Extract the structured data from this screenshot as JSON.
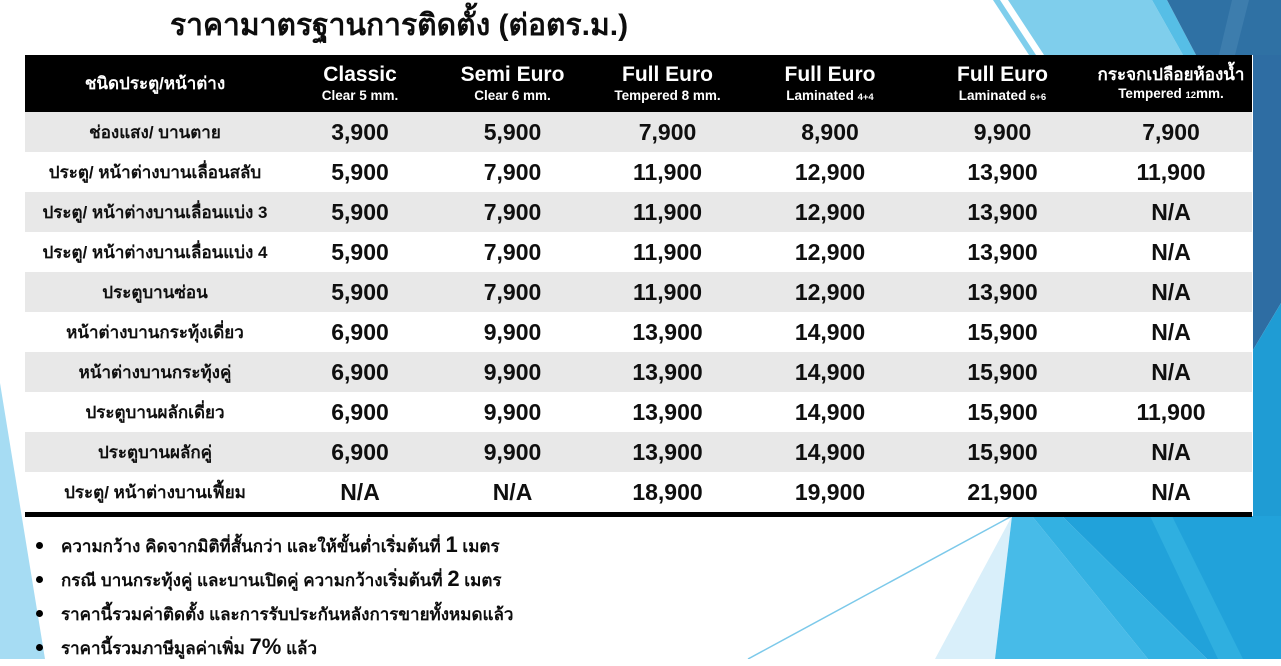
{
  "title": "ราคามาตรฐานการติดตั้ง (ต่อตร.ม.)",
  "table": {
    "columns": [
      {
        "title": "ชนิดประตู/หน้าต่าง",
        "thai": true,
        "sub_parts": []
      },
      {
        "title": "Classic",
        "thai": false,
        "sub_parts": [
          {
            "text": "Clear 5 mm.",
            "small": false
          }
        ]
      },
      {
        "title": "Semi Euro",
        "thai": false,
        "sub_parts": [
          {
            "text": "Clear 6 mm.",
            "small": false
          }
        ]
      },
      {
        "title": "Full Euro",
        "thai": false,
        "sub_parts": [
          {
            "text": "Tempered 8 mm.",
            "small": false
          }
        ]
      },
      {
        "title": "Full Euro",
        "thai": false,
        "sub_parts": [
          {
            "text": "Laminated ",
            "small": false
          },
          {
            "text": "4+4",
            "small": true
          }
        ]
      },
      {
        "title": "Full Euro",
        "thai": false,
        "sub_parts": [
          {
            "text": "Laminated ",
            "small": false
          },
          {
            "text": "6+6",
            "small": true
          }
        ]
      },
      {
        "title": "กระจกเปลือยห้องน้ำ",
        "thai": true,
        "sub_parts": [
          {
            "text": "Tempered ",
            "small": false
          },
          {
            "text": "12",
            "small": true
          },
          {
            "text": "mm.",
            "small": false
          }
        ]
      }
    ],
    "rows": [
      {
        "label": "ช่องแสง/ บานตาย",
        "values": [
          "3,900",
          "5,900",
          "7,900",
          "8,900",
          "9,900",
          "7,900"
        ]
      },
      {
        "label": "ประตู/ หน้าต่างบานเลื่อนสลับ",
        "values": [
          "5,900",
          "7,900",
          "11,900",
          "12,900",
          "13,900",
          "11,900"
        ]
      },
      {
        "label": "ประตู/ หน้าต่างบานเลื่อนแบ่ง 3",
        "values": [
          "5,900",
          "7,900",
          "11,900",
          "12,900",
          "13,900",
          "N/A"
        ]
      },
      {
        "label": "ประตู/ หน้าต่างบานเลื่อนแบ่ง 4",
        "values": [
          "5,900",
          "7,900",
          "11,900",
          "12,900",
          "13,900",
          "N/A"
        ]
      },
      {
        "label": "ประตูบานซ่อน",
        "values": [
          "5,900",
          "7,900",
          "11,900",
          "12,900",
          "13,900",
          "N/A"
        ]
      },
      {
        "label": "หน้าต่างบานกระทุ้งเดี่ยว",
        "values": [
          "6,900",
          "9,900",
          "13,900",
          "14,900",
          "15,900",
          "N/A"
        ]
      },
      {
        "label": "หน้าต่างบานกระทุ้งคู่",
        "values": [
          "6,900",
          "9,900",
          "13,900",
          "14,900",
          "15,900",
          "N/A"
        ]
      },
      {
        "label": "ประตูบานผลักเดี่ยว",
        "values": [
          "6,900",
          "9,900",
          "13,900",
          "14,900",
          "15,900",
          "11,900"
        ]
      },
      {
        "label": "ประตูบานผลักคู่",
        "values": [
          "6,900",
          "9,900",
          "13,900",
          "14,900",
          "15,900",
          "N/A"
        ]
      },
      {
        "label": "ประตู/ หน้าต่างบานเฟี้ยม",
        "values": [
          "N/A",
          "N/A",
          "18,900",
          "19,900",
          "21,900",
          "N/A"
        ]
      }
    ]
  },
  "notes": [
    {
      "pre": "ความกว้าง คิดจากมิติที่สั้นกว่า และให้ขั้นต่ำเริ่มต้นที่ ",
      "big": "1",
      "post": " เมตร"
    },
    {
      "pre": "กรณี บานกระทุ้งคู่ และบานเปิดคู่ ความกว้างเริ่มต้นที่ ",
      "big": "2",
      "post": " เมตร"
    },
    {
      "pre": "ราคานี้รวมค่าติดตั้ง และการรับประกันหลังการขายทั้งหมดแล้ว",
      "big": "",
      "post": ""
    },
    {
      "pre": "ราคานี้รวมภาษีมูลค่าเพิ่ม ",
      "big": "7%",
      "post": " แล้ว"
    }
  ],
  "colors": {
    "header_bg": "#000000",
    "row_alt": "#E8E8E8",
    "steel_blue": "#2E6DA3",
    "cyan": "#1F9CD4",
    "light_blue": "#7FCEEC",
    "pale_blue": "#A6DCF3"
  }
}
